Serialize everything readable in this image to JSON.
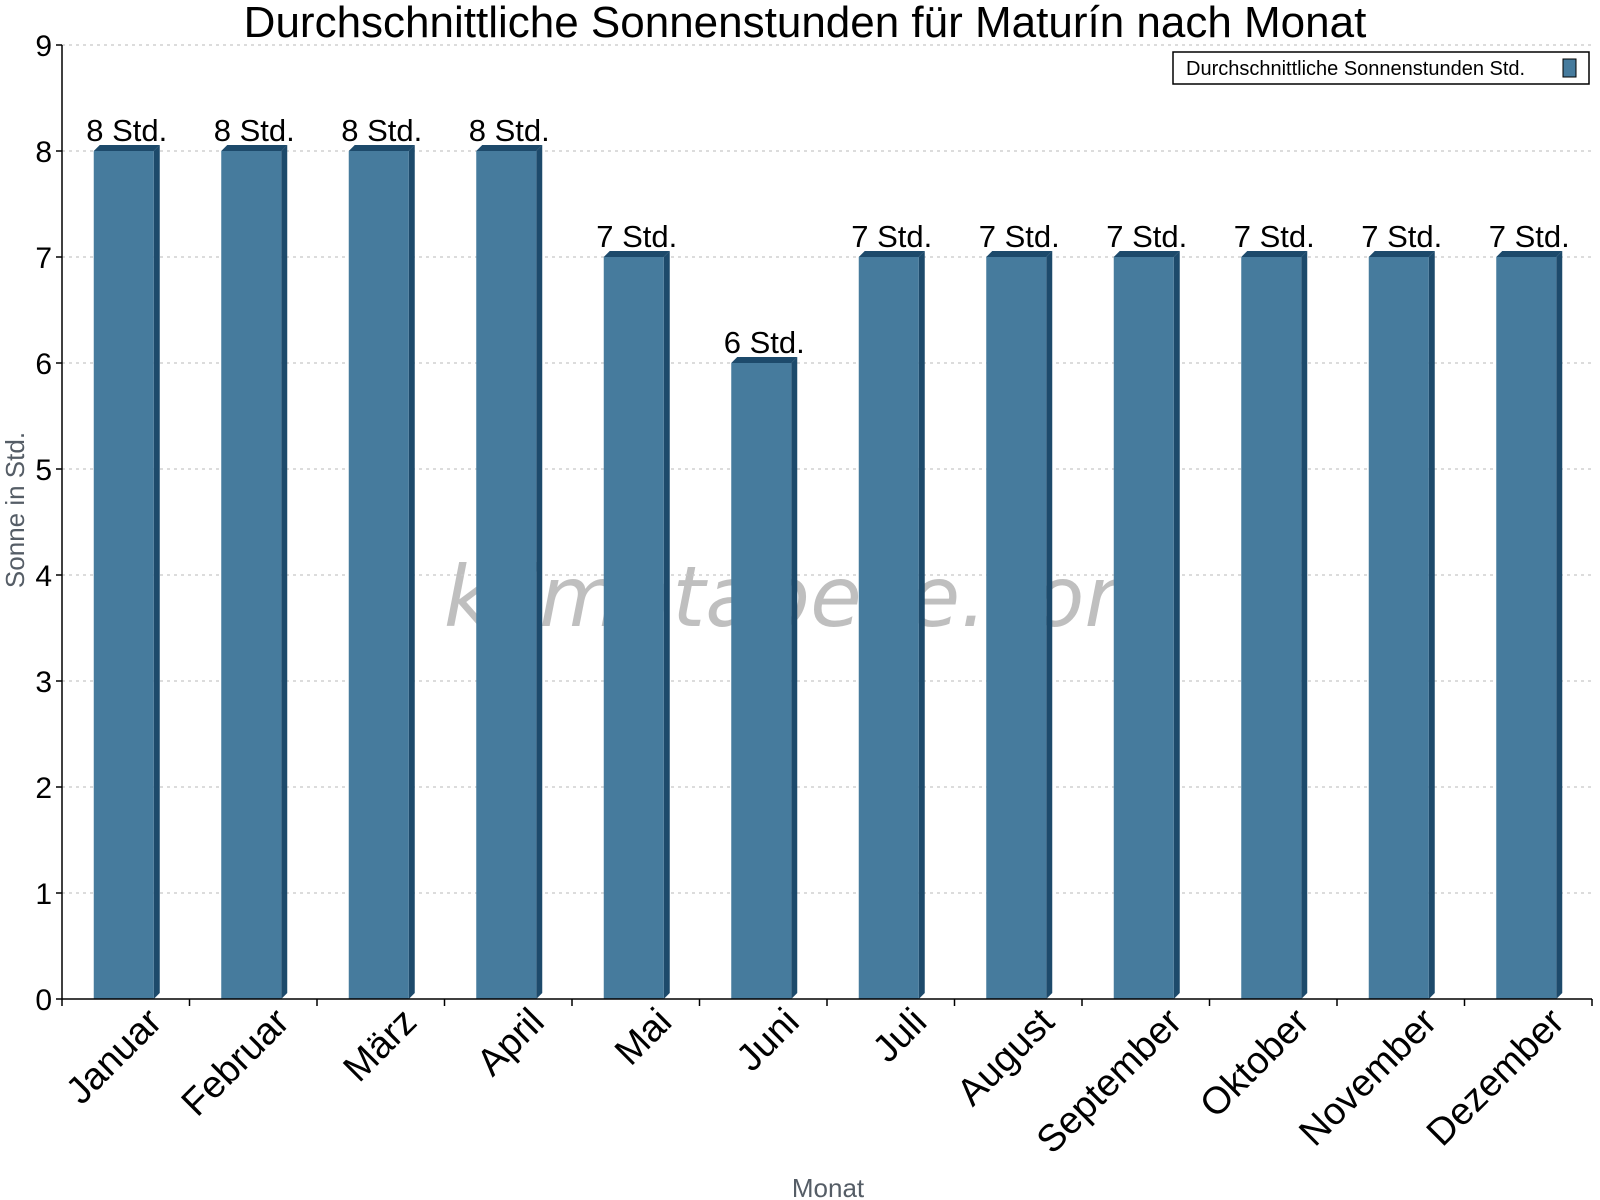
{
  "chart_data": {
    "type": "bar",
    "title": "Durchschnittliche Sonnenstunden für Maturín nach Monat",
    "xlabel": "Monat",
    "ylabel": "Sonne in Std.",
    "ylim": [
      0,
      9
    ],
    "yticks": [
      0,
      1,
      2,
      3,
      4,
      5,
      6,
      7,
      8,
      9
    ],
    "grid": true,
    "legend_position": "top-right",
    "categories": [
      "Januar",
      "Februar",
      "März",
      "April",
      "Mai",
      "Juni",
      "Juli",
      "August",
      "September",
      "Oktober",
      "November",
      "Dezember"
    ],
    "series": [
      {
        "name": "Durchschnittliche Sonnenstunden Std.",
        "values": [
          8,
          8,
          8,
          8,
          7,
          6,
          7,
          7,
          7,
          7,
          7,
          7
        ],
        "labels": [
          "8 Std.",
          "8 Std.",
          "8 Std.",
          "8 Std.",
          "7 Std.",
          "6 Std.",
          "7 Std.",
          "7 Std.",
          "7 Std.",
          "7 Std.",
          "7 Std.",
          "7 Std."
        ],
        "color": "#467b9d",
        "color_dark": "#1d4a6b"
      }
    ],
    "watermark": "klimatabelle.com"
  }
}
